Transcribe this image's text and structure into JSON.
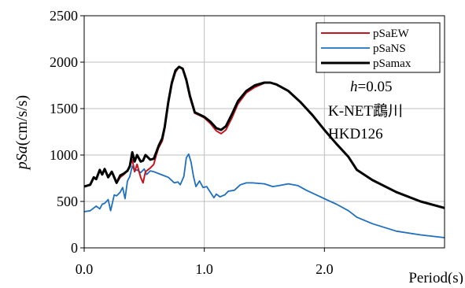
{
  "chart_data": {
    "type": "line",
    "title": "",
    "xlabel": "Period(s)",
    "ylabel": "pSa(cm/s/s)",
    "xlim": [
      0,
      3.0
    ],
    "ylim": [
      0,
      2500
    ],
    "x_ticks": [
      0,
      1.0,
      2.0
    ],
    "x_tick_labels": [
      "0.0",
      "1.0",
      "2.0"
    ],
    "y_ticks": [
      0,
      500,
      1000,
      1500,
      2000,
      2500
    ],
    "y_tick_labels": [
      "0",
      "500",
      "1000",
      "1500",
      "2000",
      "2500"
    ],
    "grid": true,
    "legend_position": "top-right",
    "annotations": {
      "damping_symbol": "h",
      "damping_value": "=0.05",
      "station_name": "K-NET鵡川",
      "station_code": "HKD126"
    },
    "series": [
      {
        "name": "pSaEW",
        "color": "#c8141e",
        "points": [
          [
            0.0,
            660
          ],
          [
            0.05,
            680
          ],
          [
            0.08,
            760
          ],
          [
            0.1,
            740
          ],
          [
            0.13,
            840
          ],
          [
            0.15,
            790
          ],
          [
            0.17,
            850
          ],
          [
            0.2,
            760
          ],
          [
            0.23,
            820
          ],
          [
            0.27,
            700
          ],
          [
            0.3,
            760
          ],
          [
            0.33,
            790
          ],
          [
            0.36,
            830
          ],
          [
            0.38,
            880
          ],
          [
            0.4,
            950
          ],
          [
            0.42,
            820
          ],
          [
            0.44,
            900
          ],
          [
            0.47,
            760
          ],
          [
            0.49,
            700
          ],
          [
            0.51,
            820
          ],
          [
            0.55,
            860
          ],
          [
            0.58,
            900
          ],
          [
            0.6,
            1000
          ],
          [
            0.62,
            1080
          ],
          [
            0.65,
            1150
          ],
          [
            0.67,
            1280
          ],
          [
            0.7,
            1550
          ],
          [
            0.73,
            1760
          ],
          [
            0.76,
            1890
          ],
          [
            0.79,
            1950
          ],
          [
            0.82,
            1930
          ],
          [
            0.85,
            1800
          ],
          [
            0.88,
            1620
          ],
          [
            0.92,
            1450
          ],
          [
            0.97,
            1420
          ],
          [
            1.0,
            1400
          ],
          [
            1.05,
            1340
          ],
          [
            1.1,
            1260
          ],
          [
            1.14,
            1230
          ],
          [
            1.18,
            1270
          ],
          [
            1.23,
            1400
          ],
          [
            1.28,
            1550
          ],
          [
            1.35,
            1670
          ],
          [
            1.42,
            1730
          ],
          [
            1.5,
            1775
          ],
          [
            1.55,
            1780
          ],
          [
            1.6,
            1760
          ],
          [
            1.7,
            1690
          ],
          [
            1.8,
            1570
          ],
          [
            1.9,
            1430
          ],
          [
            2.0,
            1270
          ],
          [
            2.1,
            1120
          ],
          [
            2.2,
            980
          ],
          [
            2.27,
            840
          ],
          [
            2.4,
            730
          ],
          [
            2.6,
            600
          ],
          [
            2.8,
            500
          ],
          [
            3.0,
            430
          ]
        ]
      },
      {
        "name": "pSaNS",
        "color": "#1f6fc0",
        "points": [
          [
            0.0,
            390
          ],
          [
            0.05,
            400
          ],
          [
            0.08,
            430
          ],
          [
            0.1,
            450
          ],
          [
            0.13,
            420
          ],
          [
            0.15,
            470
          ],
          [
            0.17,
            480
          ],
          [
            0.2,
            520
          ],
          [
            0.22,
            400
          ],
          [
            0.25,
            570
          ],
          [
            0.27,
            560
          ],
          [
            0.3,
            600
          ],
          [
            0.32,
            650
          ],
          [
            0.34,
            530
          ],
          [
            0.36,
            720
          ],
          [
            0.38,
            770
          ],
          [
            0.4,
            880
          ],
          [
            0.42,
            830
          ],
          [
            0.44,
            840
          ],
          [
            0.47,
            810
          ],
          [
            0.5,
            850
          ],
          [
            0.52,
            790
          ],
          [
            0.55,
            830
          ],
          [
            0.58,
            820
          ],
          [
            0.62,
            800
          ],
          [
            0.66,
            780
          ],
          [
            0.7,
            760
          ],
          [
            0.75,
            700
          ],
          [
            0.78,
            710
          ],
          [
            0.8,
            680
          ],
          [
            0.83,
            770
          ],
          [
            0.85,
            970
          ],
          [
            0.87,
            1010
          ],
          [
            0.89,
            920
          ],
          [
            0.91,
            770
          ],
          [
            0.93,
            660
          ],
          [
            0.96,
            720
          ],
          [
            0.99,
            650
          ],
          [
            1.02,
            660
          ],
          [
            1.05,
            600
          ],
          [
            1.08,
            540
          ],
          [
            1.1,
            580
          ],
          [
            1.13,
            550
          ],
          [
            1.17,
            570
          ],
          [
            1.2,
            610
          ],
          [
            1.25,
            620
          ],
          [
            1.3,
            680
          ],
          [
            1.35,
            700
          ],
          [
            1.4,
            700
          ],
          [
            1.5,
            690
          ],
          [
            1.57,
            660
          ],
          [
            1.62,
            670
          ],
          [
            1.7,
            690
          ],
          [
            1.78,
            670
          ],
          [
            1.85,
            620
          ],
          [
            1.95,
            560
          ],
          [
            2.0,
            530
          ],
          [
            2.1,
            470
          ],
          [
            2.2,
            400
          ],
          [
            2.27,
            330
          ],
          [
            2.4,
            260
          ],
          [
            2.6,
            180
          ],
          [
            2.8,
            140
          ],
          [
            3.0,
            110
          ]
        ]
      },
      {
        "name": "pSamax",
        "color": "#000000",
        "points": [
          [
            0.0,
            660
          ],
          [
            0.05,
            680
          ],
          [
            0.08,
            760
          ],
          [
            0.1,
            740
          ],
          [
            0.13,
            840
          ],
          [
            0.15,
            790
          ],
          [
            0.17,
            850
          ],
          [
            0.2,
            760
          ],
          [
            0.23,
            820
          ],
          [
            0.27,
            700
          ],
          [
            0.3,
            780
          ],
          [
            0.33,
            800
          ],
          [
            0.36,
            830
          ],
          [
            0.38,
            880
          ],
          [
            0.4,
            1030
          ],
          [
            0.42,
            930
          ],
          [
            0.44,
            1000
          ],
          [
            0.47,
            930
          ],
          [
            0.49,
            940
          ],
          [
            0.51,
            1000
          ],
          [
            0.55,
            950
          ],
          [
            0.58,
            960
          ],
          [
            0.6,
            1030
          ],
          [
            0.62,
            1100
          ],
          [
            0.65,
            1180
          ],
          [
            0.67,
            1300
          ],
          [
            0.7,
            1570
          ],
          [
            0.73,
            1780
          ],
          [
            0.76,
            1910
          ],
          [
            0.79,
            1950
          ],
          [
            0.82,
            1930
          ],
          [
            0.85,
            1810
          ],
          [
            0.88,
            1640
          ],
          [
            0.92,
            1460
          ],
          [
            0.97,
            1430
          ],
          [
            1.0,
            1410
          ],
          [
            1.05,
            1360
          ],
          [
            1.1,
            1290
          ],
          [
            1.14,
            1270
          ],
          [
            1.18,
            1310
          ],
          [
            1.23,
            1440
          ],
          [
            1.28,
            1580
          ],
          [
            1.35,
            1690
          ],
          [
            1.42,
            1750
          ],
          [
            1.5,
            1780
          ],
          [
            1.55,
            1780
          ],
          [
            1.6,
            1760
          ],
          [
            1.7,
            1690
          ],
          [
            1.8,
            1570
          ],
          [
            1.9,
            1430
          ],
          [
            2.0,
            1270
          ],
          [
            2.1,
            1120
          ],
          [
            2.2,
            980
          ],
          [
            2.27,
            840
          ],
          [
            2.4,
            730
          ],
          [
            2.6,
            600
          ],
          [
            2.8,
            500
          ],
          [
            3.0,
            430
          ]
        ]
      }
    ]
  }
}
